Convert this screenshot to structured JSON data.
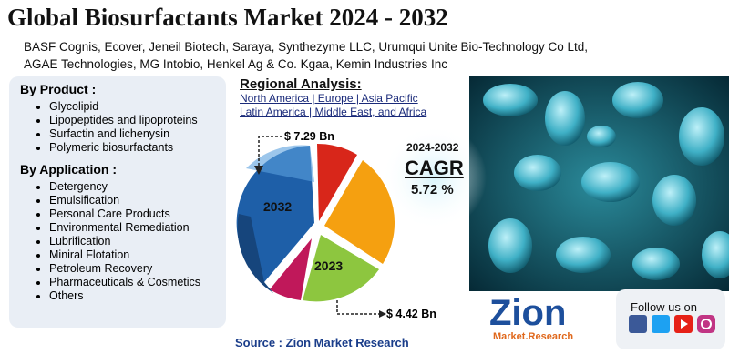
{
  "header": {
    "title": "Global Biosurfactants Market 2024 - 2032",
    "companies": [
      "BASF Cognis, Ecover, Jeneil Biotech, Saraya, Synthezyme LLC, Urumqui Unite Bio-Technology Co Ltd,",
      "AGAE Technologies, MG Intobio, Henkel Ag & Co. Kgaa, Kemin Industries Inc"
    ]
  },
  "segments": [
    {
      "heading": "By Product :",
      "items": [
        "Glycolipid",
        "Lipopeptides and lipoproteins",
        "Surfactin and lichenysin",
        "Polymeric biosurfactants"
      ]
    },
    {
      "heading": "By Application :",
      "items": [
        "Detergency",
        "Emulsification",
        "Personal Care Products",
        "Environmental Remediation",
        "Lubrification",
        "Miniral Flotation",
        "Petroleum Recovery",
        "Pharmaceuticals & Cosmetics",
        "Others"
      ]
    }
  ],
  "regional": {
    "heading": "Regional Analysis:",
    "lines": [
      "North America | Europe | Asia Pacific",
      "Latin America | Middle East, and Africa"
    ]
  },
  "pie": {
    "label_2032": "2032",
    "label_2023": "2023",
    "value_2032": "$ 7.29 Bn",
    "value_2023": "$ 4.42 Bn"
  },
  "cagr": {
    "period": "2024-2032",
    "label": "CAGR",
    "value": "5.72 %"
  },
  "logo": {
    "name": "Zion",
    "sub": "Market.Research"
  },
  "social": {
    "label": "Follow us on"
  },
  "source": "Source : Zion Market Research"
}
